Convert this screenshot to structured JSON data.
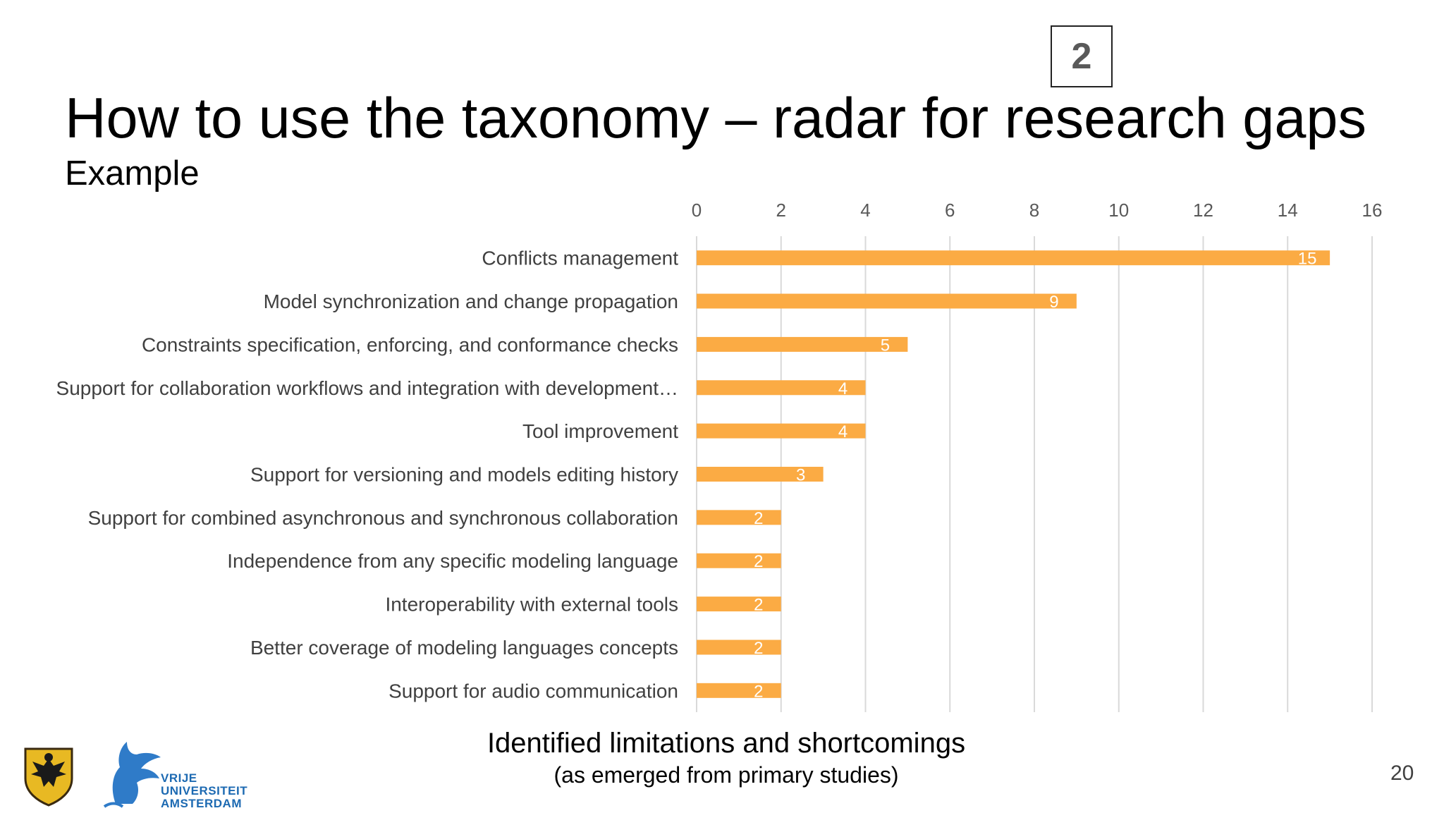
{
  "slide": {
    "badge": "2",
    "title": "How to use the taxonomy – radar for research gaps",
    "subtitle": "Example",
    "page_number": "20",
    "logo_text": [
      "VRIJE",
      "UNIVERSITEIT",
      "AMSTERDAM"
    ]
  },
  "chart_data": {
    "type": "bar",
    "orientation": "horizontal",
    "categories": [
      "Conflicts management",
      "Model synchronization and change propagation",
      "Constraints specification, enforcing, and conformance checks",
      "Support for collaboration workflows and integration with development…",
      "Tool improvement",
      "Support for versioning and models editing history",
      "Support for combined asynchronous and synchronous collaboration",
      "Independence from any specific modeling language",
      "Interoperability with external tools",
      "Better coverage of modeling languages concepts",
      "Support for audio communication"
    ],
    "values": [
      15,
      9,
      5,
      4,
      4,
      3,
      2,
      2,
      2,
      2,
      2
    ],
    "xlim": [
      0,
      16
    ],
    "xticks": [
      0,
      2,
      4,
      6,
      8,
      10,
      12,
      14,
      16
    ],
    "x_axis_position": "top",
    "grid": true,
    "bar_color": "#FBAB44",
    "xlabel": "Identified limitations and shortcomings",
    "xlabel_sub": "(as emerged from primary studies)"
  }
}
